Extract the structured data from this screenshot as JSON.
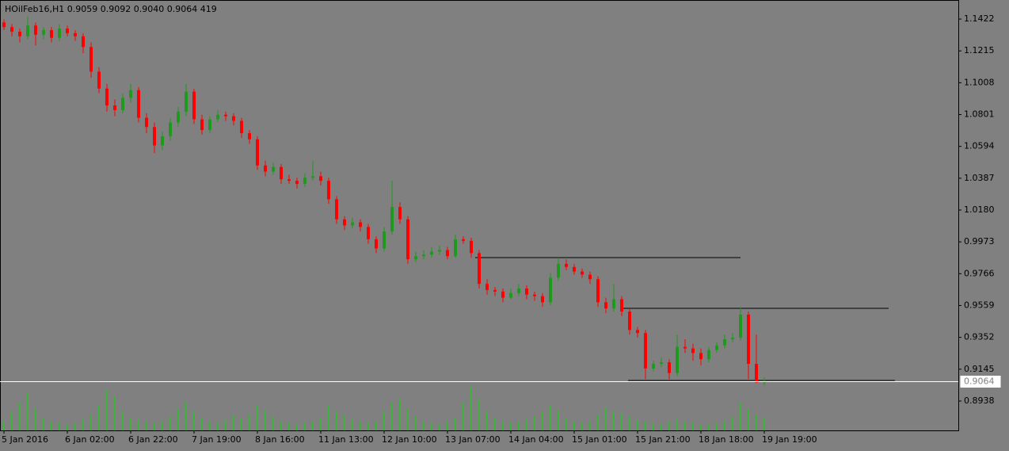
{
  "chart_data": {
    "type": "candlestick",
    "title": "HOilFeb16,H1  0.9059 0.9092 0.9040 0.9064  419",
    "bull_color": "#1e9a1e",
    "bear_color": "#ff0000",
    "volume_color": "#3cb43c",
    "level_color": "#000000",
    "price_line_color": "#ffffff",
    "ylim": [
      0.8747,
      1.1546
    ],
    "yticks": [
      1.1422,
      1.1215,
      1.1008,
      1.0801,
      1.0594,
      1.0387,
      {
        "value": 1.018,
        "label": "1.0180"
      },
      0.9973,
      0.9766,
      0.9559,
      0.9352,
      0.9145,
      0.8938
    ],
    "current_price": 0.9064,
    "levels": [
      0.9871,
      0.9541,
      0.9072
    ],
    "categories": [
      "5 Jan 2016",
      null,
      null,
      null,
      null,
      null,
      null,
      null,
      "6 Jan 02:00",
      null,
      null,
      null,
      null,
      null,
      null,
      null,
      "6 Jan 22:00",
      null,
      null,
      null,
      null,
      null,
      null,
      null,
      "7 Jan 19:00",
      null,
      null,
      null,
      null,
      null,
      null,
      null,
      "8 Jan 16:00",
      null,
      null,
      null,
      null,
      null,
      null,
      null,
      "11 Jan 13:00",
      null,
      null,
      null,
      null,
      null,
      null,
      null,
      "12 Jan 10:00",
      null,
      null,
      null,
      null,
      null,
      null,
      null,
      "13 Jan 07:00",
      null,
      null,
      null,
      null,
      null,
      null,
      null,
      "14 Jan 04:00",
      null,
      null,
      null,
      null,
      null,
      null,
      null,
      "15 Jan 01:00",
      null,
      null,
      null,
      null,
      null,
      null,
      null,
      "15 Jan 21:00",
      null,
      null,
      null,
      null,
      null,
      null,
      null,
      "18 Jan 18:00",
      null,
      null,
      null,
      null,
      null,
      null,
      null,
      "19 Jan 19:00"
    ],
    "ohlc": [
      [
        1.14,
        1.142,
        1.135,
        1.137
      ],
      [
        1.137,
        1.139,
        1.131,
        1.134
      ],
      [
        1.134,
        1.136,
        1.127,
        1.131
      ],
      [
        1.131,
        1.144,
        1.129,
        1.138
      ],
      [
        1.138,
        1.14,
        1.125,
        1.132
      ],
      [
        1.132,
        1.137,
        1.129,
        1.135
      ],
      [
        1.135,
        1.137,
        1.127,
        1.13
      ],
      [
        1.13,
        1.139,
        1.128,
        1.136
      ],
      [
        1.136,
        1.138,
        1.131,
        1.133
      ],
      [
        1.133,
        1.135,
        1.128,
        1.131
      ],
      [
        1.131,
        1.133,
        1.12,
        1.124
      ],
      [
        1.124,
        1.127,
        1.104,
        1.108
      ],
      [
        1.108,
        1.111,
        1.094,
        1.097
      ],
      [
        1.097,
        1.1,
        1.082,
        1.086
      ],
      [
        1.086,
        1.09,
        1.079,
        1.083
      ],
      [
        1.083,
        1.094,
        1.081,
        1.091
      ],
      [
        1.091,
        1.1,
        1.088,
        1.096
      ],
      [
        1.096,
        1.098,
        1.075,
        1.078
      ],
      [
        1.078,
        1.081,
        1.068,
        1.072
      ],
      [
        1.072,
        1.075,
        1.055,
        1.06
      ],
      [
        1.06,
        1.069,
        1.057,
        1.066
      ],
      [
        1.066,
        1.078,
        1.063,
        1.075
      ],
      [
        1.075,
        1.085,
        1.072,
        1.082
      ],
      [
        1.082,
        1.1,
        1.079,
        1.095
      ],
      [
        1.095,
        1.097,
        1.074,
        1.077
      ],
      [
        1.077,
        1.08,
        1.067,
        1.07
      ],
      [
        1.07,
        1.079,
        1.068,
        1.077
      ],
      [
        1.077,
        1.083,
        1.075,
        1.08
      ],
      [
        1.08,
        1.082,
        1.076,
        1.079
      ],
      [
        1.079,
        1.081,
        1.073,
        1.076
      ],
      [
        1.076,
        1.078,
        1.065,
        1.068
      ],
      [
        1.068,
        1.07,
        1.061,
        1.064
      ],
      [
        1.064,
        1.066,
        1.044,
        1.047
      ],
      [
        1.047,
        1.05,
        1.04,
        1.043
      ],
      [
        1.043,
        1.049,
        1.041,
        1.046
      ],
      [
        1.046,
        1.048,
        1.035,
        1.038
      ],
      [
        1.038,
        1.041,
        1.035,
        1.037
      ],
      [
        1.037,
        1.039,
        1.032,
        1.035
      ],
      [
        1.035,
        1.042,
        1.033,
        1.039
      ],
      [
        1.039,
        1.05,
        1.037,
        1.04
      ],
      [
        1.04,
        1.043,
        1.034,
        1.037
      ],
      [
        1.037,
        1.039,
        1.022,
        1.025
      ],
      [
        1.025,
        1.027,
        1.009,
        1.012
      ],
      [
        1.012,
        1.014,
        1.005,
        1.008
      ],
      [
        1.008,
        1.013,
        1.006,
        1.01
      ],
      [
        1.01,
        1.012,
        1.004,
        1.007
      ],
      [
        1.007,
        1.009,
        0.996,
        0.999
      ],
      [
        0.999,
        1.001,
        0.99,
        0.993
      ],
      [
        0.993,
        1.007,
        0.991,
        1.004
      ],
      [
        1.004,
        1.037,
        1.002,
        1.02
      ],
      [
        1.02,
        1.023,
        1.009,
        1.012
      ],
      [
        1.012,
        1.014,
        0.983,
        0.986
      ],
      [
        0.986,
        0.991,
        0.984,
        0.988
      ],
      [
        0.988,
        0.992,
        0.986,
        0.989
      ],
      [
        0.989,
        0.994,
        0.987,
        0.991
      ],
      [
        0.991,
        0.995,
        0.989,
        0.992
      ],
      [
        0.992,
        0.994,
        0.986,
        0.988
      ],
      [
        0.988,
        1.002,
        0.987,
        0.999
      ],
      [
        0.999,
        1.001,
        0.996,
        0.998
      ],
      [
        0.998,
        1.0,
        0.987,
        0.99
      ],
      [
        0.99,
        0.992,
        0.967,
        0.97
      ],
      [
        0.97,
        0.973,
        0.963,
        0.966
      ],
      [
        0.966,
        0.968,
        0.962,
        0.965
      ],
      [
        0.965,
        0.967,
        0.958,
        0.961
      ],
      [
        0.961,
        0.967,
        0.96,
        0.964
      ],
      [
        0.964,
        0.97,
        0.962,
        0.967
      ],
      [
        0.967,
        0.969,
        0.96,
        0.963
      ],
      [
        0.963,
        0.965,
        0.959,
        0.962
      ],
      [
        0.962,
        0.964,
        0.955,
        0.958
      ],
      [
        0.958,
        0.977,
        0.956,
        0.974
      ],
      [
        0.974,
        0.987,
        0.972,
        0.983
      ],
      [
        0.983,
        0.986,
        0.979,
        0.981
      ],
      [
        0.981,
        0.983,
        0.976,
        0.978
      ],
      [
        0.978,
        0.98,
        0.974,
        0.976
      ],
      [
        0.976,
        0.978,
        0.97,
        0.973
      ],
      [
        0.973,
        0.975,
        0.955,
        0.958
      ],
      [
        0.958,
        0.961,
        0.951,
        0.954
      ],
      [
        0.954,
        0.97,
        0.952,
        0.96
      ],
      [
        0.96,
        0.962,
        0.949,
        0.952
      ],
      [
        0.952,
        0.954,
        0.937,
        0.94
      ],
      [
        0.94,
        0.942,
        0.935,
        0.938
      ],
      [
        0.938,
        0.94,
        0.908,
        0.915
      ],
      [
        0.915,
        0.92,
        0.913,
        0.918
      ],
      [
        0.918,
        0.922,
        0.916,
        0.919
      ],
      [
        0.919,
        0.921,
        0.908,
        0.912
      ],
      [
        0.912,
        0.937,
        0.91,
        0.929
      ],
      [
        0.929,
        0.934,
        0.925,
        0.928
      ],
      [
        0.928,
        0.931,
        0.92,
        0.925
      ],
      [
        0.925,
        0.928,
        0.917,
        0.921
      ],
      [
        0.921,
        0.929,
        0.919,
        0.927
      ],
      [
        0.927,
        0.932,
        0.925,
        0.93
      ],
      [
        0.93,
        0.937,
        0.928,
        0.934
      ],
      [
        0.934,
        0.938,
        0.932,
        0.935
      ],
      [
        0.935,
        0.955,
        0.933,
        0.95
      ],
      [
        0.95,
        0.952,
        0.908,
        0.918
      ],
      [
        0.918,
        0.937,
        0.906,
        0.9059
      ],
      [
        0.9059,
        0.9092,
        0.904,
        0.9064
      ]
    ],
    "volume": [
      300,
      600,
      900,
      1200,
      700,
      400,
      300,
      250,
      200,
      250,
      350,
      500,
      800,
      1300,
      1100,
      600,
      400,
      350,
      300,
      250,
      300,
      450,
      700,
      900,
      600,
      400,
      300,
      250,
      350,
      500,
      400,
      500,
      800,
      650,
      450,
      300,
      250,
      200,
      250,
      300,
      400,
      800,
      600,
      500,
      350,
      300,
      250,
      300,
      600,
      900,
      1000,
      700,
      450,
      300,
      250,
      200,
      300,
      400,
      900,
      1400,
      1000,
      600,
      400,
      300,
      250,
      300,
      350,
      450,
      600,
      800,
      650,
      400,
      300,
      250,
      300,
      500,
      750,
      600,
      550,
      450,
      350,
      300,
      250,
      200,
      300,
      350,
      300,
      250,
      200,
      200,
      250,
      300,
      450,
      900,
      700,
      500,
      419
    ]
  }
}
